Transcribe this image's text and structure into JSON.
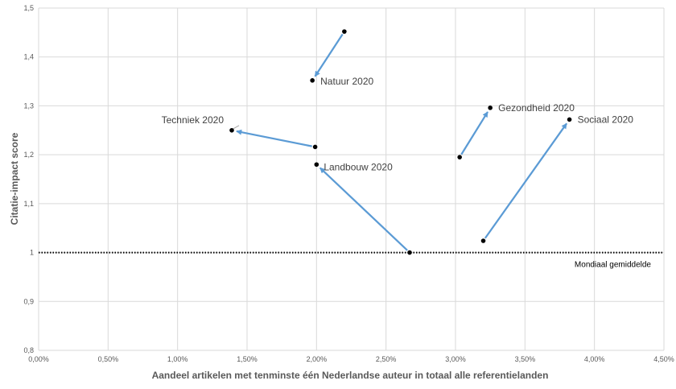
{
  "chart_data": {
    "type": "scatter",
    "title": "",
    "xlabel": "Aandeel artikelen met tenminste één Nederlandse auteur in totaal alle referentielanden",
    "ylabel": "Citatie-impact score",
    "xlim": [
      0,
      0.045
    ],
    "ylim": [
      0.8,
      1.5
    ],
    "grid": true,
    "x_ticks": [
      {
        "value": 0.0,
        "label": "0,00%"
      },
      {
        "value": 0.005,
        "label": "0,50%"
      },
      {
        "value": 0.01,
        "label": "1,00%"
      },
      {
        "value": 0.015,
        "label": "1,50%"
      },
      {
        "value": 0.02,
        "label": "2,00%"
      },
      {
        "value": 0.025,
        "label": "2,50%"
      },
      {
        "value": 0.03,
        "label": "3,00%"
      },
      {
        "value": 0.035,
        "label": "3,50%"
      },
      {
        "value": 0.04,
        "label": "4,00%"
      },
      {
        "value": 0.045,
        "label": "4,50%"
      }
    ],
    "y_ticks": [
      {
        "value": 0.8,
        "label": "0,8"
      },
      {
        "value": 0.9,
        "label": "0,9"
      },
      {
        "value": 1.0,
        "label": "1"
      },
      {
        "value": 1.1,
        "label": "1,1"
      },
      {
        "value": 1.2,
        "label": "1,2"
      },
      {
        "value": 1.3,
        "label": "1,3"
      },
      {
        "value": 1.4,
        "label": "1,4"
      },
      {
        "value": 1.5,
        "label": "1,5"
      }
    ],
    "reference_line": {
      "y": 1.0,
      "label": "Mondiaal gemiddelde",
      "style": "dotted"
    },
    "marker_color": "#000000",
    "arrow_color": "#5b9bd5",
    "series": [
      {
        "label": "Natuur 2020",
        "from": {
          "x": 0.022,
          "y": 1.452
        },
        "to": {
          "x": 0.0197,
          "y": 1.352
        }
      },
      {
        "label": "Techniek 2020",
        "from": {
          "x": 0.0199,
          "y": 1.216
        },
        "to": {
          "x": 0.0139,
          "y": 1.25
        }
      },
      {
        "label": "Landbouw 2020",
        "from": {
          "x": 0.0267,
          "y": 1.0
        },
        "to": {
          "x": 0.02,
          "y": 1.18
        }
      },
      {
        "label": "Gezondheid 2020",
        "from": {
          "x": 0.0303,
          "y": 1.195
        },
        "to": {
          "x": 0.0325,
          "y": 1.296
        }
      },
      {
        "label": "Sociaal 2020",
        "from": {
          "x": 0.032,
          "y": 1.024
        },
        "to": {
          "x": 0.0382,
          "y": 1.272
        }
      }
    ]
  }
}
